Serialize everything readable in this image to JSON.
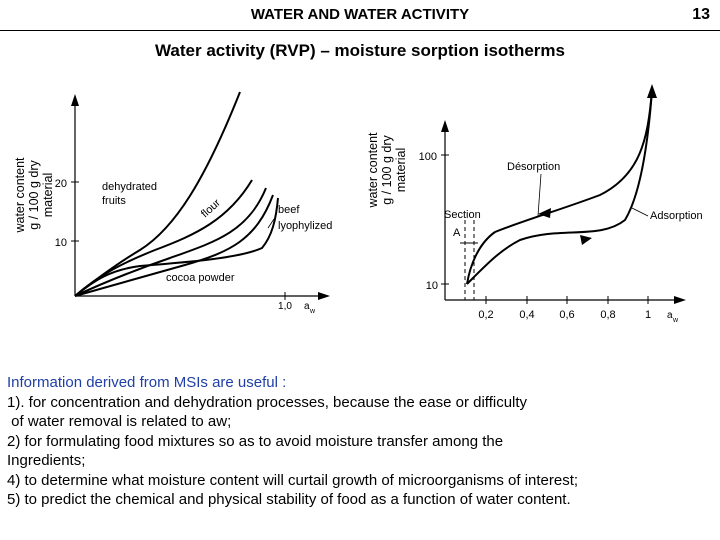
{
  "header": {
    "title": "WATER AND WATER ACTIVITY",
    "page_number": "13"
  },
  "subtitle": "Water activity (RVP) – moisture sorption isotherms",
  "left_chart": {
    "y_label": [
      "water content",
      "g / 100 g dry",
      "material"
    ],
    "y_ticks": [
      "20",
      "10"
    ],
    "x_tick": "1,0",
    "x_label_main": "a",
    "x_label_sub": "w",
    "curve_labels": {
      "dehydrated_fruits_1": "dehydrated",
      "dehydrated_fruits_2": "fruits",
      "flour": "flour",
      "beef_1": "beef",
      "beef_2": "lyophylized",
      "cocoa": "cocoa powder"
    }
  },
  "right_chart": {
    "y_label": [
      "water content",
      "g / 100 g dry",
      "material"
    ],
    "y_ticks": [
      "100",
      "10"
    ],
    "x_ticks": [
      "0,2",
      "0,4",
      "0,6",
      "0,8",
      "1"
    ],
    "x_label_main": "a",
    "x_label_sub": "w",
    "desorption": "Désorption",
    "adsorption": "Adsorption",
    "section": "Section",
    "section_a": "A"
  },
  "info": {
    "lead": "Information derived from MSIs are useful :",
    "lines": [
      "1). for concentration and dehydration  processes, because the ease or difficulty",
      " of water removal is related to aw;",
      "2) for formulating food mixtures so as to avoid moisture transfer among the",
      "Ingredients;",
      "4) to determine what moisture content will curtail growth of microorganisms of interest;",
      "5) to predict the chemical and physical stability of food as a function of water content."
    ]
  }
}
